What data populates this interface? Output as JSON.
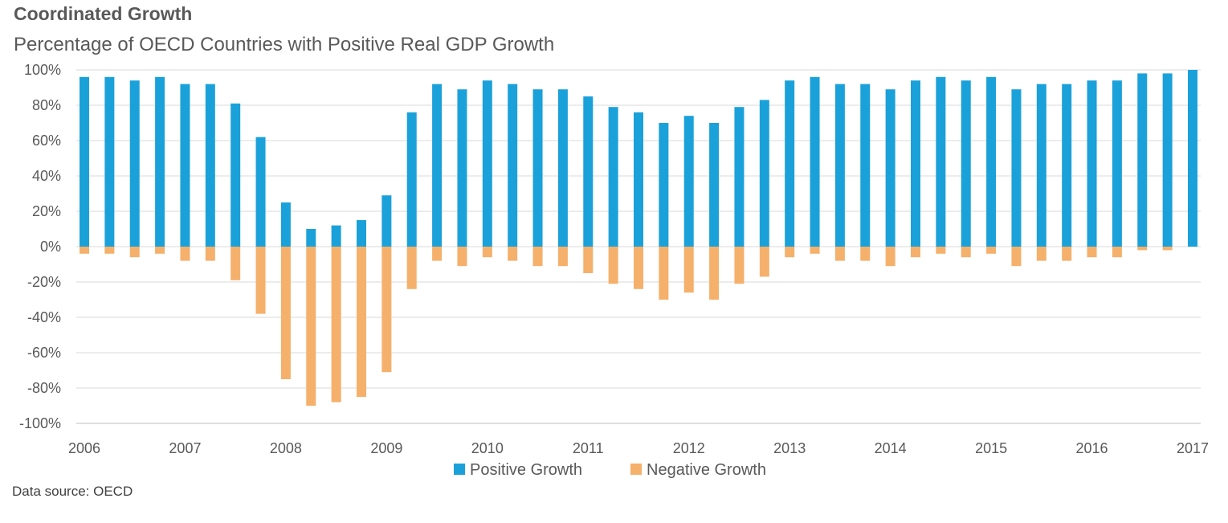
{
  "header": {
    "title": "Coordinated Growth",
    "subtitle": "Percentage of OECD Countries with Positive Real GDP Growth"
  },
  "footer": {
    "source": "Data source:  OECD"
  },
  "colors": {
    "positive": "#1ba1da",
    "negative": "#f5b06b",
    "grid": "#d9d9d9",
    "axis": "#bfbfbf"
  },
  "chart_data": {
    "type": "bar",
    "title": "Percentage of OECD Countries with Positive Real GDP Growth",
    "xlabel": "",
    "ylabel": "",
    "ylim": [
      -100,
      100
    ],
    "yticks": [
      100,
      80,
      60,
      40,
      20,
      0,
      -20,
      -40,
      -60,
      -80,
      -100
    ],
    "ytick_labels": [
      "100%",
      "80%",
      "60%",
      "40%",
      "20%",
      "0%",
      "-20%",
      "-40%",
      "-60%",
      "-80%",
      "-100%"
    ],
    "xtick_labels": [
      "2006",
      "2007",
      "2008",
      "2009",
      "2010",
      "2011",
      "2012",
      "2013",
      "2014",
      "2015",
      "2016",
      "2017"
    ],
    "categories": [
      "2006Q1",
      "2006Q2",
      "2006Q3",
      "2006Q4",
      "2007Q1",
      "2007Q2",
      "2007Q3",
      "2007Q4",
      "2008Q1",
      "2008Q2",
      "2008Q3",
      "2008Q4",
      "2009Q1",
      "2009Q2",
      "2009Q3",
      "2009Q4",
      "2010Q1",
      "2010Q2",
      "2010Q3",
      "2010Q4",
      "2011Q1",
      "2011Q2",
      "2011Q3",
      "2011Q4",
      "2012Q1",
      "2012Q2",
      "2012Q3",
      "2012Q4",
      "2013Q1",
      "2013Q2",
      "2013Q3",
      "2013Q4",
      "2014Q1",
      "2014Q2",
      "2014Q3",
      "2014Q4",
      "2015Q1",
      "2015Q2",
      "2015Q3",
      "2015Q4",
      "2016Q1",
      "2016Q2",
      "2016Q3",
      "2016Q4",
      "2017Q1"
    ],
    "series": [
      {
        "name": "Positive Growth",
        "values": [
          96,
          96,
          94,
          96,
          92,
          92,
          81,
          62,
          25,
          10,
          12,
          15,
          29,
          76,
          92,
          89,
          94,
          92,
          89,
          89,
          85,
          79,
          76,
          70,
          74,
          70,
          79,
          83,
          94,
          96,
          92,
          92,
          89,
          94,
          96,
          94,
          96,
          89,
          92,
          92,
          94,
          94,
          98,
          98,
          100
        ]
      },
      {
        "name": "Negative Growth",
        "values": [
          -4,
          -4,
          -6,
          -4,
          -8,
          -8,
          -19,
          -38,
          -75,
          -90,
          -88,
          -85,
          -71,
          -24,
          -8,
          -11,
          -6,
          -8,
          -11,
          -11,
          -15,
          -21,
          -24,
          -30,
          -26,
          -30,
          -21,
          -17,
          -6,
          -4,
          -8,
          -8,
          -11,
          -6,
          -4,
          -6,
          -4,
          -11,
          -8,
          -8,
          -6,
          -6,
          -2,
          -2,
          0
        ]
      }
    ],
    "legend": [
      "Positive Growth",
      "Negative Growth"
    ],
    "legend_position": "bottom",
    "grid": true
  }
}
